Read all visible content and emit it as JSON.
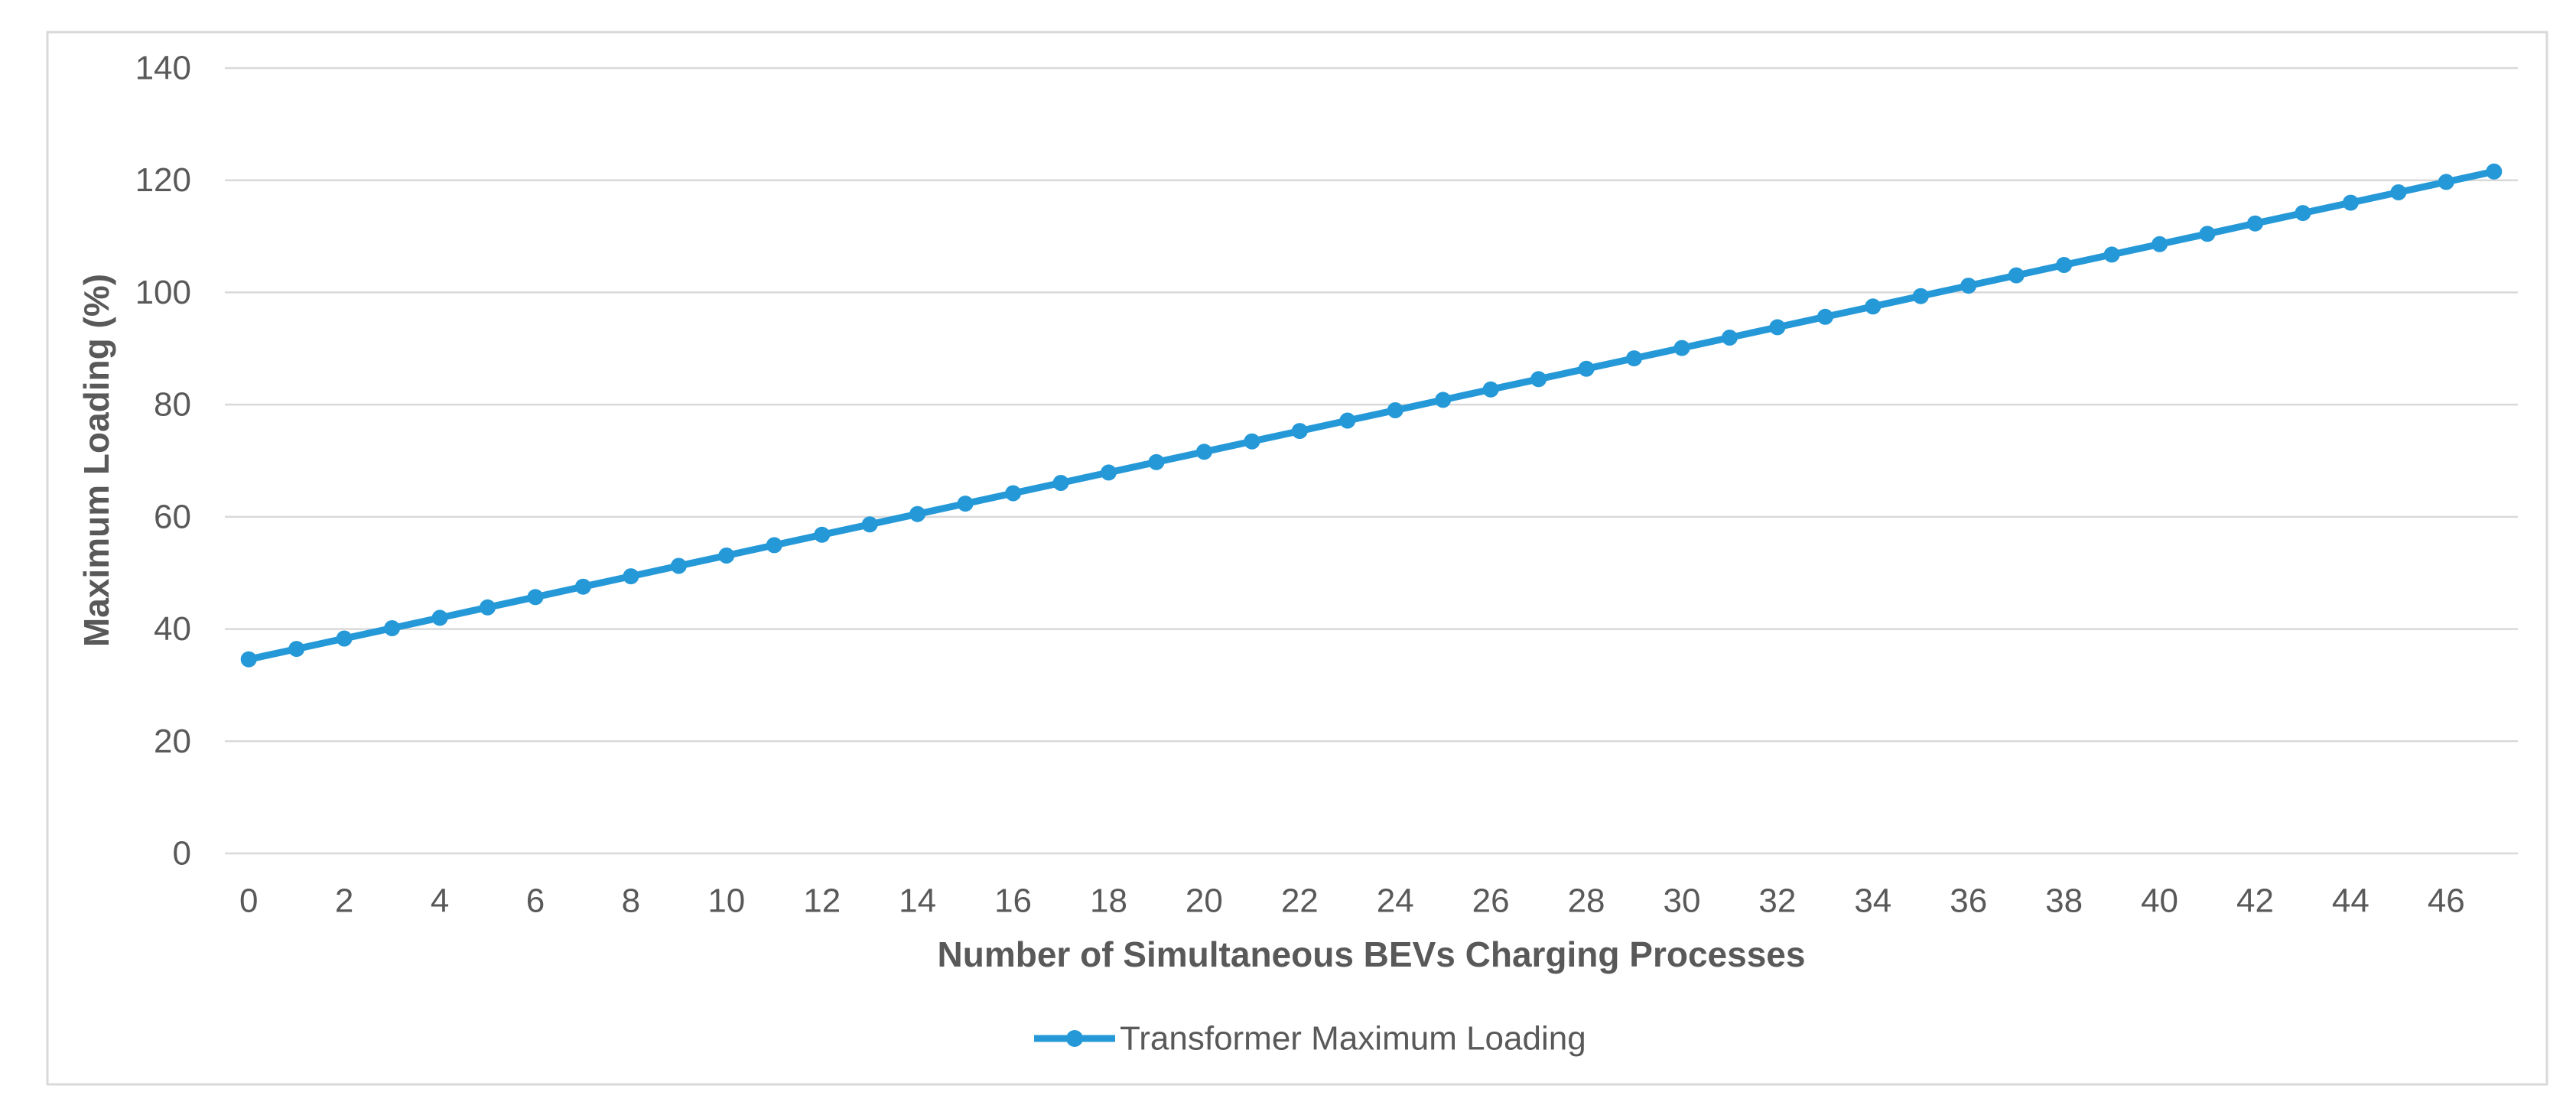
{
  "chart_data": {
    "type": "line",
    "title": "",
    "xlabel": "Number of Simultaneous BEVs Charging Processes",
    "ylabel": "Maximum Loading (%)",
    "series_name": "Transformer Maximum Loading",
    "x": [
      0,
      1,
      2,
      3,
      4,
      5,
      6,
      7,
      8,
      9,
      10,
      11,
      12,
      13,
      14,
      15,
      16,
      17,
      18,
      19,
      20,
      21,
      22,
      23,
      24,
      25,
      26,
      27,
      28,
      29,
      30,
      31,
      32,
      33,
      34,
      35,
      36,
      37,
      38,
      39,
      40,
      41,
      42,
      43,
      44,
      45,
      46,
      47
    ],
    "values": [
      34.6,
      36.45,
      38.3,
      40.15,
      42.0,
      43.85,
      45.7,
      47.55,
      49.4,
      51.25,
      53.1,
      54.95,
      56.8,
      58.65,
      60.5,
      62.35,
      64.2,
      66.05,
      67.9,
      69.75,
      71.6,
      73.45,
      75.3,
      77.15,
      79.0,
      80.85,
      82.7,
      84.55,
      86.4,
      88.25,
      90.1,
      91.95,
      93.8,
      95.65,
      97.5,
      99.35,
      101.2,
      103.05,
      104.9,
      106.75,
      108.6,
      110.45,
      112.3,
      114.15,
      116.0,
      117.85,
      119.7,
      121.55
    ],
    "ylim": [
      0,
      140
    ],
    "ytick_step": 20,
    "xtick_step": 2,
    "xtick_max_label": 46,
    "grid": "horizontal",
    "legend_position": "bottom-center",
    "marker": "circle",
    "colors": {
      "series": "#2599d8",
      "gridline": "#d9d9d9",
      "axis_line": "#d9d9d9",
      "tick_text": "#595959",
      "title_text": "#595959",
      "chart_border": "#d9d9d9",
      "background": "#ffffff"
    }
  }
}
